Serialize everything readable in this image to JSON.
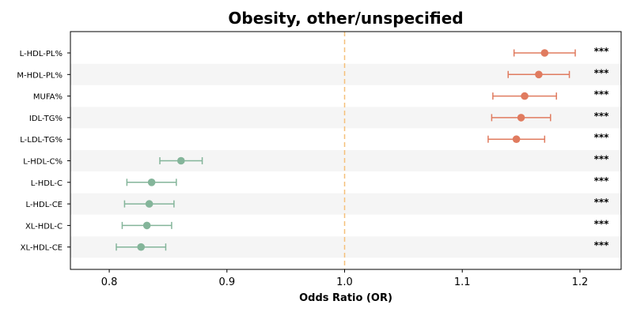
{
  "chart_data": {
    "type": "forest",
    "title": "Obesity, other/unspecified",
    "xlabel": "Odds Ratio (OR)",
    "ylabel": "",
    "xlim": [
      0.767,
      1.235
    ],
    "xticks": [
      0.8,
      0.9,
      1.0,
      1.1,
      1.2
    ],
    "xtick_labels": [
      "0.8",
      "0.9",
      "1.0",
      "1.1",
      "1.2"
    ],
    "reference_line": 1.0,
    "grid": false,
    "alternating_row_shading": true,
    "colors": {
      "positive": "#e07b5f",
      "negative": "#84b59a",
      "reference_line": "#f5c07a",
      "row_shading": "#f5f5f5"
    },
    "rows": [
      {
        "label": "L-HDL-PL%",
        "or": 1.17,
        "ci_low": 1.144,
        "ci_high": 1.196,
        "significance": "***"
      },
      {
        "label": "M-HDL-PL%",
        "or": 1.165,
        "ci_low": 1.139,
        "ci_high": 1.191,
        "significance": "***"
      },
      {
        "label": "MUFA%",
        "or": 1.153,
        "ci_low": 1.126,
        "ci_high": 1.18,
        "significance": "***"
      },
      {
        "label": "IDL-TG%",
        "or": 1.15,
        "ci_low": 1.125,
        "ci_high": 1.175,
        "significance": "***"
      },
      {
        "label": "L-LDL-TG%",
        "or": 1.146,
        "ci_low": 1.122,
        "ci_high": 1.17,
        "significance": "***"
      },
      {
        "label": "L-HDL-C%",
        "or": 0.861,
        "ci_low": 0.843,
        "ci_high": 0.879,
        "significance": "***"
      },
      {
        "label": "L-HDL-C",
        "or": 0.836,
        "ci_low": 0.815,
        "ci_high": 0.857,
        "significance": "***"
      },
      {
        "label": "L-HDL-CE",
        "or": 0.834,
        "ci_low": 0.813,
        "ci_high": 0.855,
        "significance": "***"
      },
      {
        "label": "XL-HDL-C",
        "or": 0.832,
        "ci_low": 0.811,
        "ci_high": 0.853,
        "significance": "***"
      },
      {
        "label": "XL-HDL-CE",
        "or": 0.827,
        "ci_low": 0.806,
        "ci_high": 0.848,
        "significance": "***"
      }
    ]
  }
}
